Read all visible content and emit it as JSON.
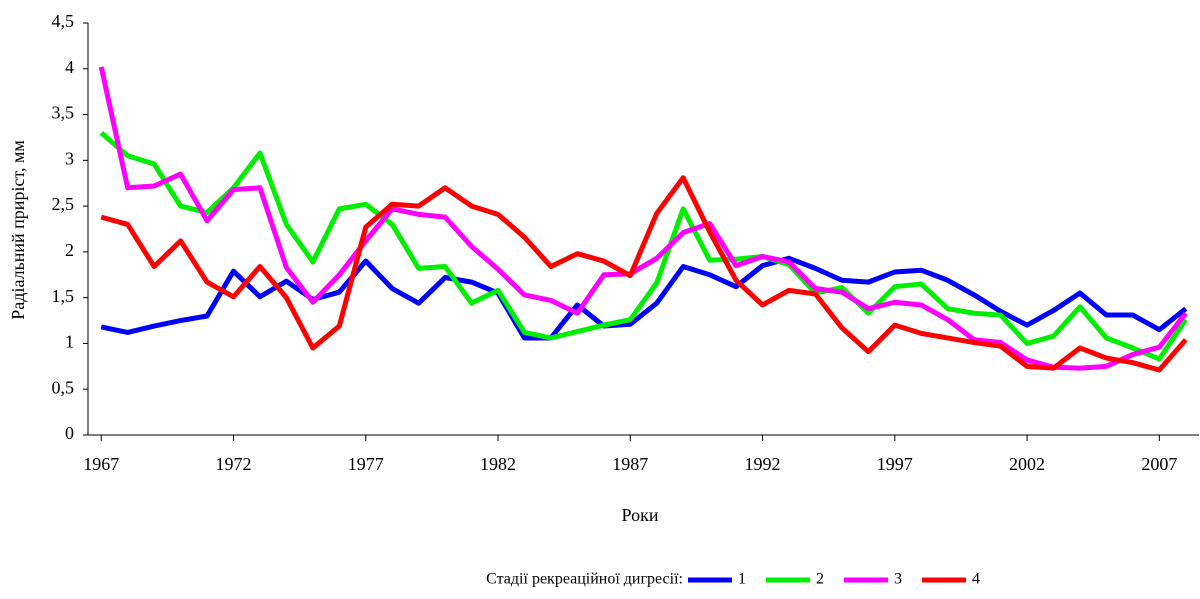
{
  "chart_data": {
    "type": "line",
    "y_label": "Радіальний приріст, мм",
    "x_label": "Роки",
    "legend_title": "Стадії рекреаційної дигресії:",
    "x": [
      1967,
      1968,
      1969,
      1970,
      1971,
      1972,
      1973,
      1974,
      1975,
      1976,
      1977,
      1978,
      1979,
      1980,
      1981,
      1982,
      1983,
      1984,
      1985,
      1986,
      1987,
      1988,
      1989,
      1990,
      1991,
      1992,
      1993,
      1994,
      1995,
      1996,
      1997,
      1998,
      1999,
      2000,
      2001,
      2002,
      2003,
      2004,
      2005,
      2006,
      2007,
      2008
    ],
    "xlim": [
      1966.5,
      2008.5
    ],
    "xticks": [
      1967,
      1972,
      1977,
      1982,
      1987,
      1992,
      1997,
      2002,
      2007
    ],
    "ylim": [
      0,
      4.5
    ],
    "yticks": [
      0,
      {
        "value": 0.5,
        "label": "0,5"
      },
      1,
      {
        "value": 1.5,
        "label": "1,5"
      },
      2,
      {
        "value": 2.5,
        "label": "2,5"
      },
      3,
      {
        "value": 3.5,
        "label": "3,5"
      },
      4,
      {
        "value": 4.5,
        "label": "4,5"
      }
    ],
    "grid": false,
    "legend": "bottom",
    "series": [
      {
        "name": "1",
        "color": "#0000ff",
        "values": [
          1.18,
          1.12,
          1.19,
          1.25,
          1.3,
          1.79,
          1.51,
          1.68,
          1.48,
          1.56,
          1.9,
          1.6,
          1.44,
          1.72,
          1.67,
          1.55,
          1.06,
          1.06,
          1.42,
          1.19,
          1.21,
          1.44,
          1.84,
          1.75,
          1.62,
          1.85,
          1.93,
          1.82,
          1.69,
          1.67,
          1.78,
          1.8,
          1.69,
          1.53,
          1.35,
          1.2,
          1.36,
          1.55,
          1.31,
          1.31,
          1.15,
          1.38
        ]
      },
      {
        "name": "2",
        "color": "#00ee00",
        "values": [
          3.3,
          3.05,
          2.96,
          2.5,
          2.43,
          2.7,
          3.08,
          2.3,
          1.89,
          2.47,
          2.52,
          2.3,
          1.82,
          1.84,
          1.44,
          1.58,
          1.12,
          1.06,
          1.13,
          1.2,
          1.26,
          1.66,
          2.47,
          1.91,
          1.92,
          1.95,
          1.86,
          1.55,
          1.61,
          1.33,
          1.62,
          1.65,
          1.38,
          1.33,
          1.31,
          1.0,
          1.08,
          1.4,
          1.06,
          0.95,
          0.83,
          1.26
        ]
      },
      {
        "name": "3",
        "color": "#ff00ff",
        "values": [
          4.02,
          2.7,
          2.72,
          2.85,
          2.34,
          2.68,
          2.7,
          1.83,
          1.45,
          1.75,
          2.12,
          2.47,
          2.41,
          2.38,
          2.06,
          1.81,
          1.53,
          1.47,
          1.33,
          1.75,
          1.76,
          1.93,
          2.21,
          2.31,
          1.85,
          1.95,
          1.89,
          1.6,
          1.56,
          1.38,
          1.45,
          1.42,
          1.26,
          1.04,
          1.01,
          0.82,
          0.74,
          0.73,
          0.75,
          0.88,
          0.96,
          1.33
        ]
      },
      {
        "name": "4",
        "color": "#ff0000",
        "values": [
          2.38,
          2.3,
          1.84,
          2.12,
          1.67,
          1.51,
          1.84,
          1.5,
          0.95,
          1.19,
          2.27,
          2.52,
          2.5,
          2.7,
          2.5,
          2.41,
          2.16,
          1.84,
          1.98,
          1.9,
          1.74,
          2.42,
          2.81,
          2.22,
          1.69,
          1.42,
          1.58,
          1.54,
          1.17,
          0.91,
          1.2,
          1.11,
          1.06,
          1.01,
          0.97,
          0.75,
          0.73,
          0.95,
          0.84,
          0.79,
          0.71,
          1.04
        ]
      }
    ]
  }
}
